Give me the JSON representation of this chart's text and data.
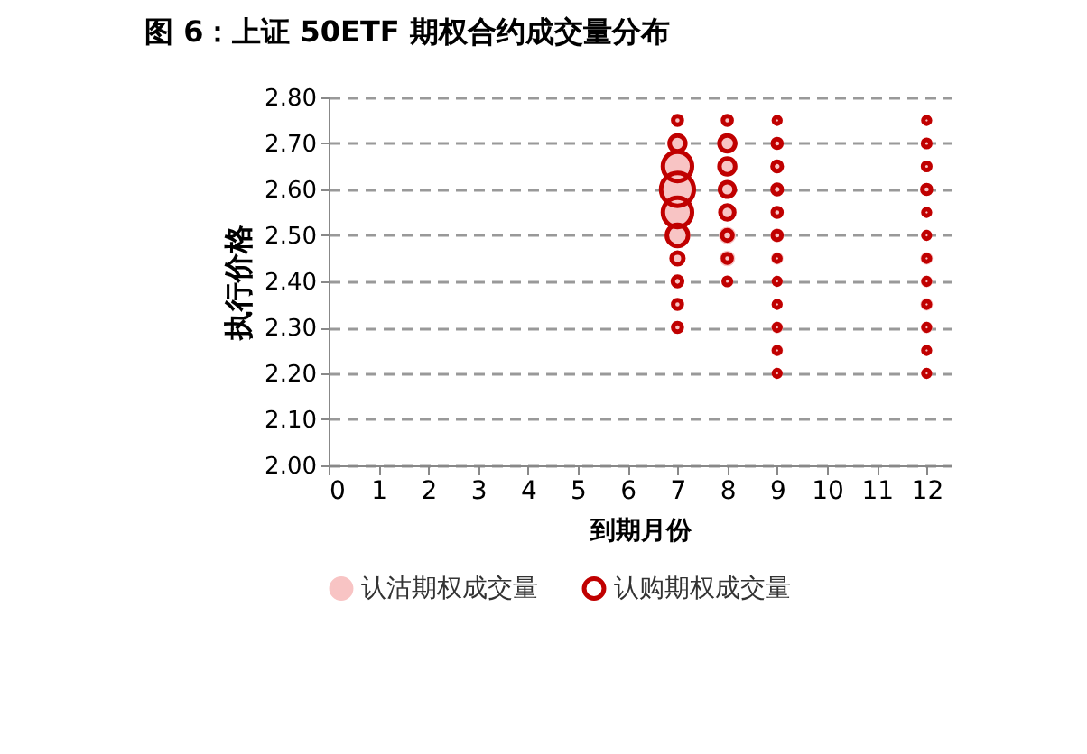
{
  "chart_data": {
    "type": "bubble",
    "title": "图 6：上证 50ETF 期权合约成交量分布",
    "xlabel": "到期月份",
    "ylabel": "执行价格",
    "xlim": [
      0,
      12.5
    ],
    "xticks": [
      0,
      1,
      2,
      3,
      4,
      5,
      6,
      7,
      8,
      9,
      10,
      11,
      12
    ],
    "ylim": [
      2.0,
      2.8
    ],
    "yticks": [
      {
        "value": 2.0,
        "label": "2.00"
      },
      {
        "value": 2.1,
        "label": "2.10"
      },
      {
        "value": 2.2,
        "label": "2.20"
      },
      {
        "value": 2.3,
        "label": "2.30"
      },
      {
        "value": 2.4,
        "label": "2.40"
      },
      {
        "value": 2.5,
        "label": "2.50"
      },
      {
        "value": 2.6,
        "label": "2.60"
      },
      {
        "value": 2.7,
        "label": "2.70"
      },
      {
        "value": 2.8,
        "label": "2.80"
      }
    ],
    "grid": "y",
    "legend": "bottom",
    "series": [
      {
        "name": "认沽期权成交量",
        "color": "#f8c4c4",
        "x": [
          7,
          7,
          7,
          7,
          7,
          7,
          7,
          7,
          7,
          7,
          8,
          8,
          8,
          8,
          8,
          8,
          8,
          8,
          9,
          9,
          9,
          9,
          9,
          9,
          9,
          9,
          9,
          9,
          9,
          9,
          12,
          12,
          12,
          12,
          12,
          12,
          12,
          12,
          12,
          12,
          12,
          12
        ],
        "values": [
          2.75,
          2.7,
          2.65,
          2.6,
          2.55,
          2.5,
          2.45,
          2.4,
          2.35,
          2.3,
          2.75,
          2.7,
          2.65,
          2.6,
          2.55,
          2.5,
          2.45,
          2.4,
          2.75,
          2.7,
          2.65,
          2.6,
          2.55,
          2.5,
          2.45,
          2.4,
          2.35,
          2.3,
          2.25,
          2.2,
          2.75,
          2.7,
          2.65,
          2.6,
          2.55,
          2.5,
          2.45,
          2.4,
          2.35,
          2.3,
          2.25,
          2.2
        ],
        "sizes": [
          0.04,
          0.2,
          0.7,
          0.9,
          0.7,
          0.4,
          0.05,
          0.04,
          0.04,
          0.04,
          0.04,
          0.15,
          0.2,
          0.15,
          0.15,
          0.15,
          0.12,
          0.04,
          0.04,
          0.04,
          0.04,
          0.04,
          0.04,
          0.08,
          0.06,
          0.04,
          0.04,
          0.05,
          0.05,
          0.04,
          0.04,
          0.04,
          0.04,
          0.04,
          0.04,
          0.04,
          0.06,
          0.05,
          0.06,
          0.05,
          0.04,
          0.04
        ]
      },
      {
        "name": "认购期权成交量",
        "color": "#c00000",
        "x": [
          7,
          7,
          7,
          7,
          7,
          7,
          7,
          7,
          7,
          7,
          8,
          8,
          8,
          8,
          8,
          8,
          8,
          8,
          9,
          9,
          9,
          9,
          9,
          9,
          9,
          9,
          9,
          9,
          9,
          9,
          12,
          12,
          12,
          12,
          12,
          12,
          12,
          12,
          12,
          12,
          12,
          12
        ],
        "values": [
          2.75,
          2.7,
          2.65,
          2.6,
          2.55,
          2.5,
          2.45,
          2.4,
          2.35,
          2.3,
          2.75,
          2.7,
          2.65,
          2.6,
          2.55,
          2.5,
          2.45,
          2.4,
          2.75,
          2.7,
          2.65,
          2.6,
          2.55,
          2.5,
          2.45,
          2.4,
          2.35,
          2.3,
          2.25,
          2.2,
          2.75,
          2.7,
          2.65,
          2.6,
          2.55,
          2.5,
          2.45,
          2.4,
          2.35,
          2.3,
          2.25,
          2.2
        ],
        "sizes": [
          0.07,
          0.23,
          0.79,
          1,
          0.79,
          0.42,
          0.13,
          0.08,
          0.07,
          0.07,
          0.07,
          0.23,
          0.23,
          0.2,
          0.18,
          0.1,
          0.07,
          0.05,
          0.04,
          0.07,
          0.08,
          0.08,
          0.07,
          0.07,
          0.04,
          0.04,
          0.04,
          0.04,
          0.04,
          0.04,
          0.04,
          0.05,
          0.05,
          0.07,
          0.04,
          0.04,
          0.04,
          0.04,
          0.04,
          0.04,
          0.04,
          0.04
        ]
      }
    ]
  }
}
